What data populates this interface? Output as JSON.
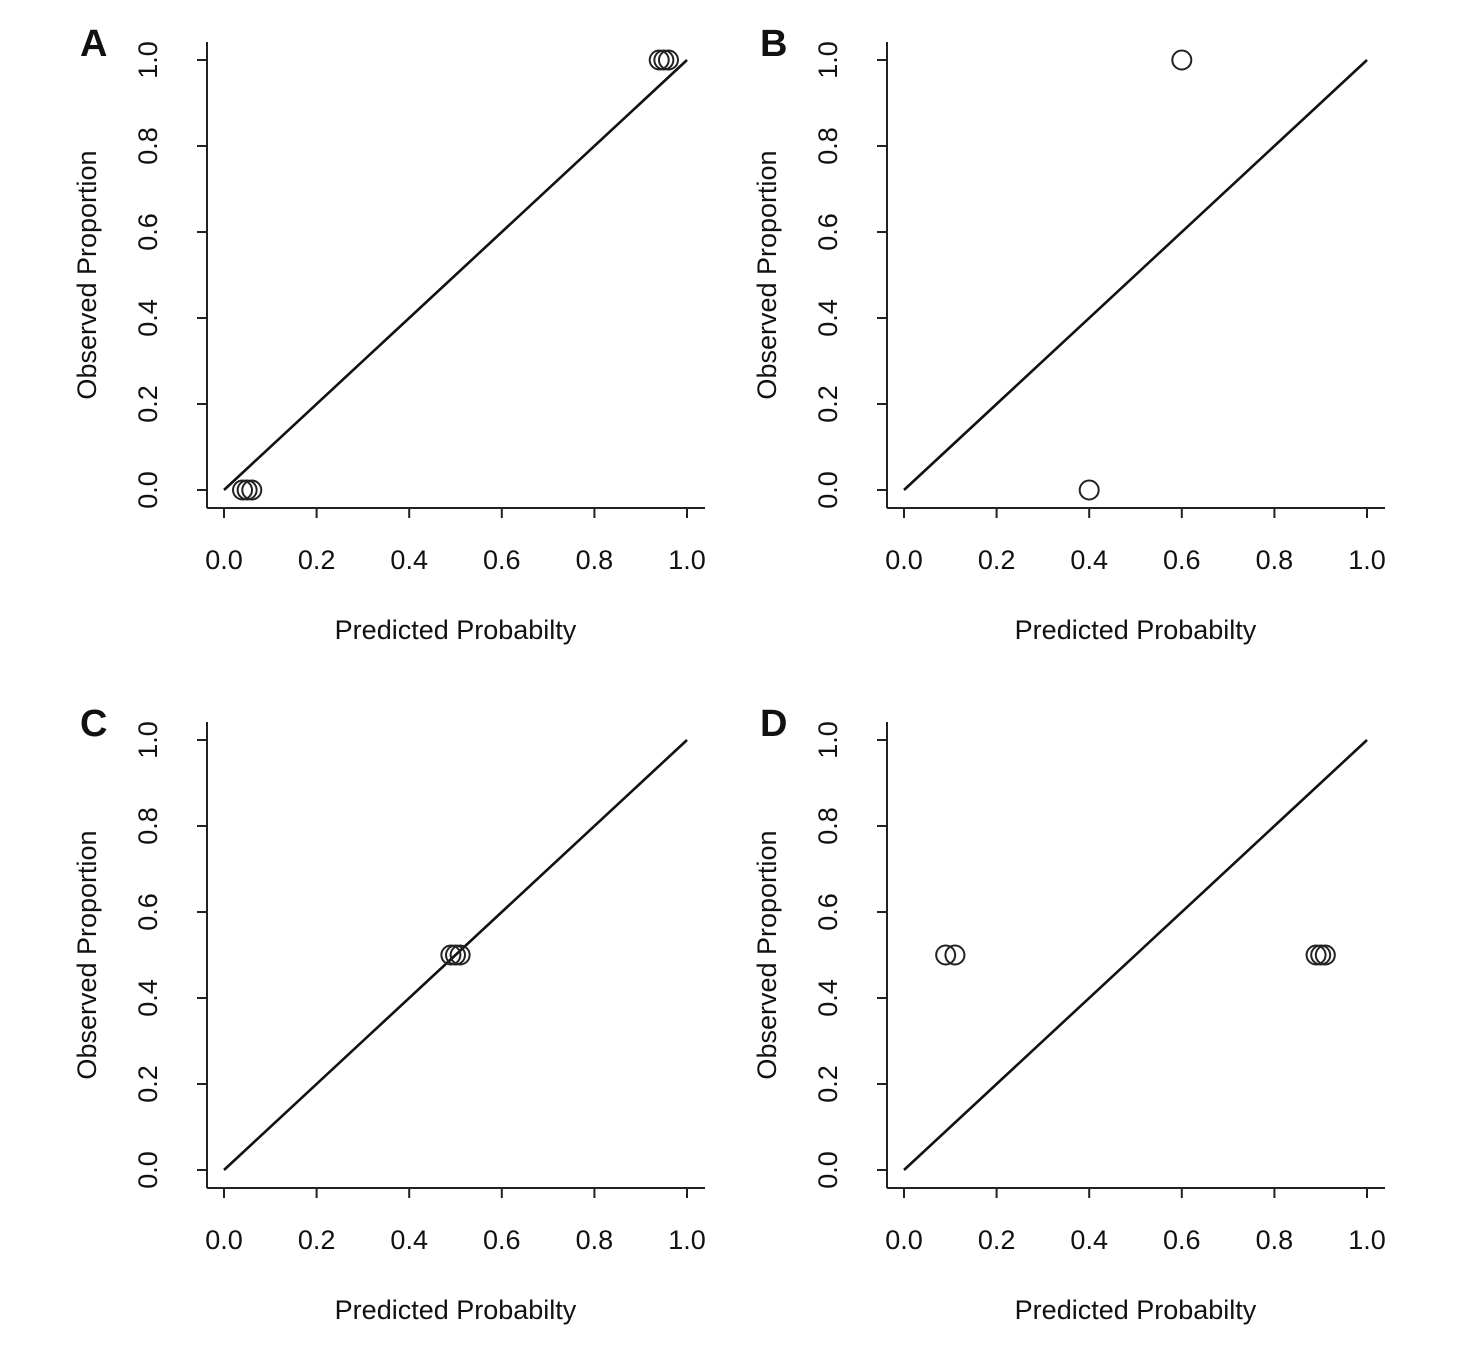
{
  "chart_data": [
    {
      "panel": "A",
      "type": "scatter",
      "xlabel": "Predicted Probabilty",
      "ylabel": "Observed Proportion",
      "xlim": [
        0,
        1
      ],
      "ylim": [
        0,
        1
      ],
      "xticks": [
        "0.0",
        "0.2",
        "0.4",
        "0.6",
        "0.8",
        "1.0"
      ],
      "yticks": [
        "0.0",
        "0.2",
        "0.4",
        "0.6",
        "0.8",
        "1.0"
      ],
      "reference_line": [
        [
          0,
          0
        ],
        [
          1,
          1
        ]
      ],
      "points": [
        {
          "x": 0.04,
          "y": 0.0
        },
        {
          "x": 0.05,
          "y": 0.0
        },
        {
          "x": 0.06,
          "y": 0.0
        },
        {
          "x": 0.94,
          "y": 1.0
        },
        {
          "x": 0.95,
          "y": 1.0
        },
        {
          "x": 0.96,
          "y": 1.0
        }
      ]
    },
    {
      "panel": "B",
      "type": "scatter",
      "xlabel": "Predicted Probabilty",
      "ylabel": "Observed Proportion",
      "xlim": [
        0,
        1
      ],
      "ylim": [
        0,
        1
      ],
      "xticks": [
        "0.0",
        "0.2",
        "0.4",
        "0.6",
        "0.8",
        "1.0"
      ],
      "yticks": [
        "0.0",
        "0.2",
        "0.4",
        "0.6",
        "0.8",
        "1.0"
      ],
      "reference_line": [
        [
          0,
          0
        ],
        [
          1,
          1
        ]
      ],
      "points": [
        {
          "x": 0.4,
          "y": 0.0
        },
        {
          "x": 0.6,
          "y": 1.0
        }
      ]
    },
    {
      "panel": "C",
      "type": "scatter",
      "xlabel": "Predicted Probabilty",
      "ylabel": "Observed Proportion",
      "xlim": [
        0,
        1
      ],
      "ylim": [
        0,
        1
      ],
      "xticks": [
        "0.0",
        "0.2",
        "0.4",
        "0.6",
        "0.8",
        "1.0"
      ],
      "yticks": [
        "0.0",
        "0.2",
        "0.4",
        "0.6",
        "0.8",
        "1.0"
      ],
      "reference_line": [
        [
          0,
          0
        ],
        [
          1,
          1
        ]
      ],
      "points": [
        {
          "x": 0.49,
          "y": 0.5
        },
        {
          "x": 0.5,
          "y": 0.5
        },
        {
          "x": 0.51,
          "y": 0.5
        }
      ]
    },
    {
      "panel": "D",
      "type": "scatter",
      "xlabel": "Predicted Probabilty",
      "ylabel": "Observed Proportion",
      "xlim": [
        0,
        1
      ],
      "ylim": [
        0,
        1
      ],
      "xticks": [
        "0.0",
        "0.2",
        "0.4",
        "0.6",
        "0.8",
        "1.0"
      ],
      "yticks": [
        "0.0",
        "0.2",
        "0.4",
        "0.6",
        "0.8",
        "1.0"
      ],
      "reference_line": [
        [
          0,
          0
        ],
        [
          1,
          1
        ]
      ],
      "points": [
        {
          "x": 0.09,
          "y": 0.5
        },
        {
          "x": 0.11,
          "y": 0.5
        },
        {
          "x": 0.89,
          "y": 0.5
        },
        {
          "x": 0.9,
          "y": 0.5
        },
        {
          "x": 0.91,
          "y": 0.5
        }
      ]
    }
  ]
}
